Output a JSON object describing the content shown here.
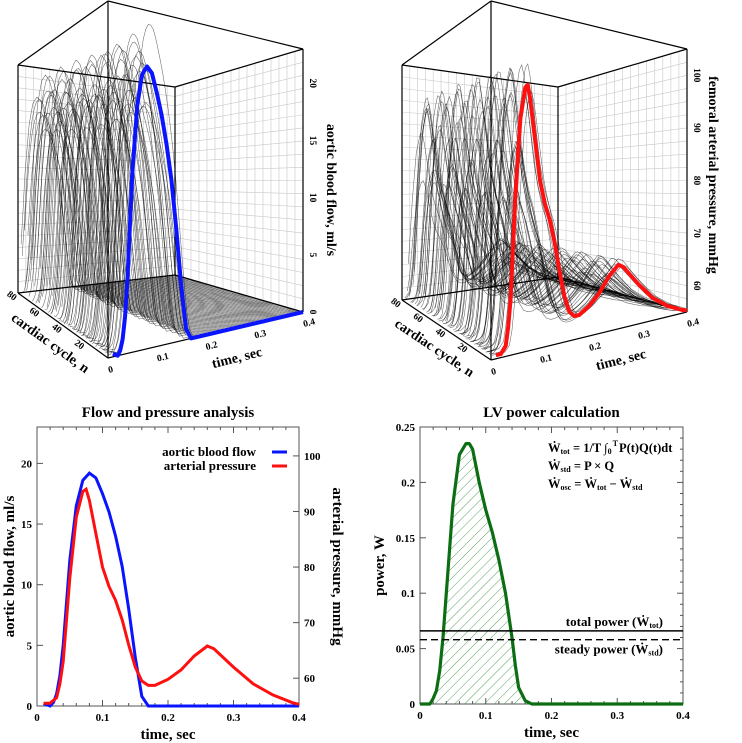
{
  "chart_data": [
    {
      "type": "line",
      "view": "3d-waterfall",
      "zlabel": "aortic blood flow, ml/s",
      "xlabel": "time, sec",
      "ylabel": "cardiac cycle, n",
      "xlim": [
        0,
        0.4
      ],
      "ylim": [
        0,
        80
      ],
      "zlim": [
        0,
        23
      ],
      "xticks": [
        "0",
        "0.1",
        "0.2",
        "0.3",
        "0.4"
      ],
      "yticks": [
        "20",
        "40",
        "60",
        "80"
      ],
      "zticks": [
        "0",
        "5",
        "10",
        "15",
        "20"
      ],
      "highlight_color": "#0a14ff",
      "highlight_cycle": 0,
      "cycles_shown": 80,
      "series_ref": "flow"
    },
    {
      "type": "line",
      "view": "3d-waterfall",
      "zlabel": "femoral arterial pressure, mmHg",
      "xlabel": "time, sec",
      "ylabel": "cardiac cycle, n",
      "xlim": [
        0,
        0.4
      ],
      "ylim": [
        0,
        80
      ],
      "zlim": [
        55,
        105
      ],
      "xticks": [
        "0",
        "0.1",
        "0.2",
        "0.3",
        "0.4"
      ],
      "yticks": [
        "20",
        "40",
        "60",
        "80"
      ],
      "zticks": [
        "60",
        "70",
        "80",
        "90",
        "100"
      ],
      "highlight_color": "#ff1010",
      "highlight_cycle": 0,
      "cycles_shown": 80,
      "series_ref": "pressure"
    },
    {
      "type": "line",
      "title": "Flow and pressure analysis",
      "xlabel": "time, sec",
      "ylabel": "aortic blood flow, ml/s",
      "ylabel_right": "arterial pressure, mmHg",
      "xlim": [
        0,
        0.4
      ],
      "ylim": [
        0,
        23
      ],
      "ylim_right": [
        55,
        105.2
      ],
      "xticks": [
        "0",
        "0.1",
        "0.2",
        "0.3",
        "0.4"
      ],
      "yticks": [
        "0",
        "5",
        "10",
        "15",
        "20"
      ],
      "yticks_right": [
        "60",
        "70",
        "80",
        "90",
        "100"
      ],
      "legend_position": "top-right",
      "series": [
        {
          "name": "aortic blood flow",
          "color": "#0a14ff",
          "axis": "left",
          "x": [
            0.01,
            0.02,
            0.025,
            0.03,
            0.035,
            0.04,
            0.05,
            0.06,
            0.07,
            0.08,
            0.09,
            0.1,
            0.11,
            0.12,
            0.13,
            0.14,
            0.15,
            0.16,
            0.17,
            0.2,
            0.3,
            0.4
          ],
          "y": [
            0.2,
            0.0,
            0.3,
            1.0,
            2.5,
            5.0,
            12.0,
            16.5,
            18.6,
            19.2,
            18.8,
            17.5,
            16.0,
            14.0,
            11.5,
            8.0,
            4.0,
            0.8,
            0.0,
            0.0,
            0.0,
            0.0
          ]
        },
        {
          "name": "arterial pressure",
          "color": "#ff1010",
          "axis": "right",
          "x": [
            0.01,
            0.02,
            0.03,
            0.035,
            0.04,
            0.05,
            0.06,
            0.07,
            0.075,
            0.08,
            0.09,
            0.1,
            0.11,
            0.12,
            0.13,
            0.14,
            0.15,
            0.16,
            0.17,
            0.18,
            0.2,
            0.22,
            0.24,
            0.26,
            0.27,
            0.3,
            0.33,
            0.36,
            0.39,
            0.4
          ],
          "y": [
            55.5,
            55.5,
            56.5,
            59.0,
            63.0,
            78.0,
            89.0,
            93.6,
            94.0,
            92.0,
            86.0,
            80.0,
            76.5,
            74.0,
            70.5,
            66.0,
            62.0,
            59.5,
            58.7,
            58.7,
            59.8,
            61.5,
            64.0,
            65.8,
            65.3,
            62.0,
            59.0,
            57.0,
            55.6,
            55.3
          ]
        }
      ]
    },
    {
      "type": "area",
      "title": "LV power calculation",
      "xlabel": "time, sec",
      "ylabel": "power, W",
      "xlim": [
        0,
        0.4
      ],
      "ylim": [
        0,
        0.25
      ],
      "xticks": [
        "0",
        "0.1",
        "0.2",
        "0.3",
        "0.4"
      ],
      "yticks": [
        "0",
        "0.05",
        "0.1",
        "0.15",
        "0.2",
        "0.25"
      ],
      "series": [
        {
          "name": "LV power",
          "color": "#0b6e12",
          "x": [
            0.0,
            0.015,
            0.02,
            0.025,
            0.03,
            0.035,
            0.04,
            0.05,
            0.06,
            0.07,
            0.075,
            0.08,
            0.09,
            0.1,
            0.11,
            0.12,
            0.13,
            0.14,
            0.145,
            0.15,
            0.16,
            0.17,
            0.2,
            0.3,
            0.4
          ],
          "y": [
            0.0,
            0.0,
            0.005,
            0.012,
            0.03,
            0.06,
            0.1,
            0.18,
            0.225,
            0.235,
            0.235,
            0.23,
            0.2,
            0.175,
            0.155,
            0.13,
            0.1,
            0.06,
            0.035,
            0.015,
            0.003,
            0.0,
            0.0,
            0.0,
            0.0
          ]
        }
      ],
      "hlines": [
        {
          "name": "total power",
          "value": 0.066,
          "style": "solid",
          "label_text": "total power (",
          "label_sym": "Ẇ",
          "label_sub": "tot",
          "label_end": ")"
        },
        {
          "name": "steady power",
          "value": 0.058,
          "style": "dashed",
          "label_text": "steady power (",
          "label_sym": "Ẇ",
          "label_sub": "std",
          "label_end": ")"
        }
      ],
      "formulas": [
        {
          "sym": "Ẇ",
          "sub": "tot",
          "rest": " = 1/T ∫",
          "lim_hi": "T",
          "lim_lo": "0",
          "rest2": "P(t)Q(t)dt"
        },
        {
          "sym": "Ẇ",
          "sub": "std",
          "rest": " = P × Q",
          "lim_hi": "",
          "lim_lo": "",
          "rest2": ""
        },
        {
          "sym": "Ẇ",
          "sub": "osc",
          "rest": " = Ẇ",
          "lim_hi": "",
          "lim_lo": "",
          "rest2": "",
          "sub2": "tot",
          "rest3": " −  Ẇ",
          "sub3": "std"
        }
      ]
    }
  ]
}
